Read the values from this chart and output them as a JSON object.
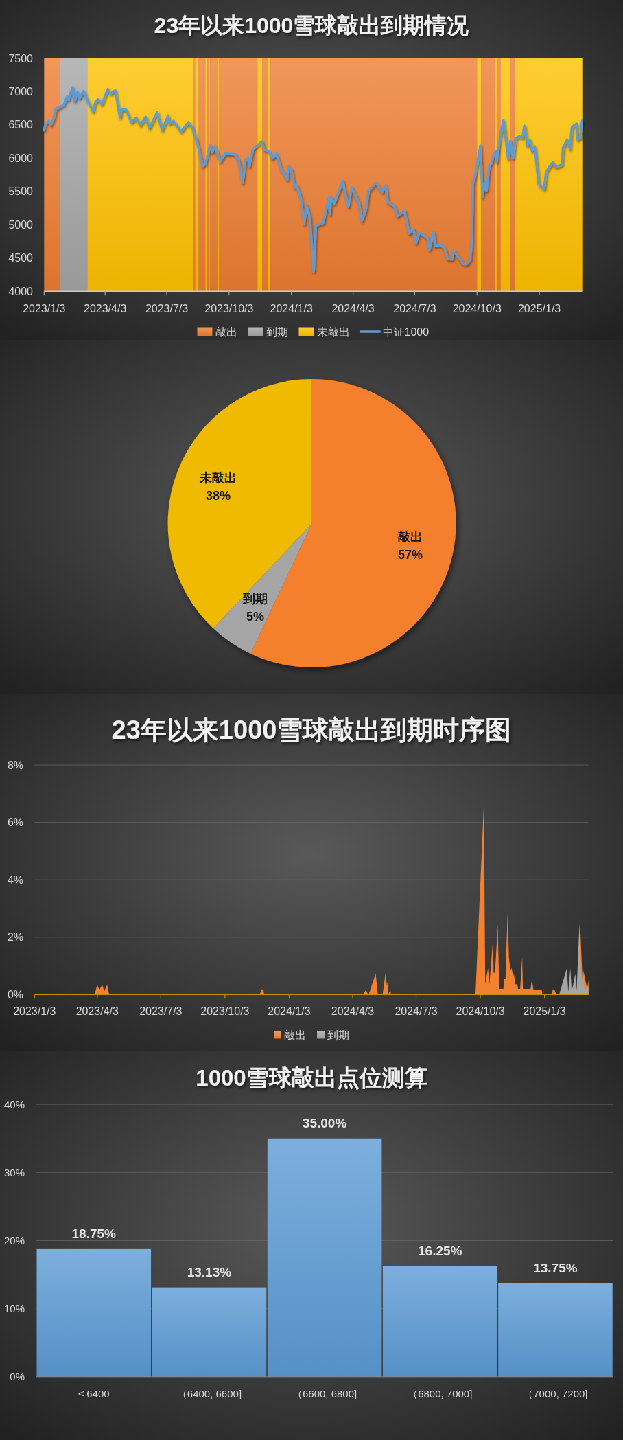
{
  "chart_data": [
    {
      "type": "line",
      "title": "23年以来1000雪球敲出到期情况",
      "xlim": [
        "2023-01-03",
        "2025-03-07"
      ],
      "xticks": [
        {
          "value": "2023-01-03",
          "label": "2023/1/3"
        },
        {
          "value": "2023-04-03",
          "label": "2023/4/3"
        },
        {
          "value": "2023-07-03",
          "label": "2023/7/3"
        },
        {
          "value": "2023-10-03",
          "label": "2023/10/3"
        },
        {
          "value": "2024-01-03",
          "label": "2024/1/3"
        },
        {
          "value": "2024-04-03",
          "label": "2024/4/3"
        },
        {
          "value": "2024-07-03",
          "label": "2024/7/3"
        },
        {
          "value": "2024-10-03",
          "label": "2024/10/3"
        },
        {
          "value": "2025-01-03",
          "label": "2025/1/3"
        }
      ],
      "ylim": [
        4000,
        7500
      ],
      "yticks": [
        4000,
        4500,
        5000,
        5500,
        6000,
        6500,
        7000,
        7500
      ],
      "legend": "bottom",
      "bands": [
        {
          "axis": "x",
          "from": "2023-01-03",
          "to": "2023-01-26",
          "label": "敲出",
          "color": "#ed7d31"
        },
        {
          "axis": "x",
          "from": "2023-01-26",
          "to": "2023-03-08",
          "label": "到期",
          "color": "#a5a5a5"
        },
        {
          "axis": "x",
          "from": "2023-03-08",
          "to": "2023-08-11",
          "label": "未敲出",
          "color": "#ffc000"
        },
        {
          "axis": "x",
          "from": "2023-08-11",
          "to": "2023-08-14",
          "color": "#ed7d31"
        },
        {
          "axis": "x",
          "from": "2023-08-14",
          "to": "2023-08-19",
          "color": "#ffc000"
        },
        {
          "axis": "x",
          "from": "2023-08-19",
          "to": "2023-08-29",
          "color": "#ed7d31"
        },
        {
          "axis": "x",
          "from": "2023-08-29",
          "to": "2023-08-31",
          "color": "#ffc000"
        },
        {
          "axis": "x",
          "from": "2023-08-31",
          "to": "2023-09-04",
          "color": "#ed7d31"
        },
        {
          "axis": "x",
          "from": "2023-09-04",
          "to": "2023-09-05",
          "color": "#ffc000"
        },
        {
          "axis": "x",
          "from": "2023-09-05",
          "to": "2023-09-17",
          "color": "#ed7d31"
        },
        {
          "axis": "x",
          "from": "2023-09-17",
          "to": "2023-09-18",
          "color": "#ffc000"
        },
        {
          "axis": "x",
          "from": "2023-09-18",
          "to": "2023-11-14",
          "color": "#ed7d31"
        },
        {
          "axis": "x",
          "from": "2023-11-14",
          "to": "2023-11-21",
          "color": "#ffc000"
        },
        {
          "axis": "x",
          "from": "2023-11-21",
          "to": "2023-11-29",
          "color": "#ed7d31"
        },
        {
          "axis": "x",
          "from": "2023-11-29",
          "to": "2023-12-03",
          "color": "#ffc000"
        },
        {
          "axis": "x",
          "from": "2023-12-03",
          "to": "2024-10-03",
          "color": "#ed7d31"
        },
        {
          "axis": "x",
          "from": "2024-10-03",
          "to": "2024-10-09",
          "color": "#ffc000"
        },
        {
          "axis": "x",
          "from": "2024-10-09",
          "to": "2024-10-30",
          "color": "#ed7d31"
        },
        {
          "axis": "x",
          "from": "2024-10-30",
          "to": "2024-11-01",
          "color": "#ffc000"
        },
        {
          "axis": "x",
          "from": "2024-11-01",
          "to": "2024-11-07",
          "color": "#ed7d31"
        },
        {
          "axis": "x",
          "from": "2024-11-07",
          "to": "2024-11-21",
          "color": "#ffc000"
        },
        {
          "axis": "x",
          "from": "2024-11-21",
          "to": "2024-11-28",
          "color": "#ed7d31"
        },
        {
          "axis": "x",
          "from": "2024-11-28",
          "to": "2025-03-07",
          "color": "#ffc000"
        }
      ],
      "series": [
        {
          "name": "中证1000",
          "color": "#5b9bd5",
          "x": [
            "2023-01-03",
            "2023-01-05",
            "2023-01-10",
            "2023-01-13",
            "2023-01-18",
            "2023-01-20",
            "2023-02-01",
            "2023-02-06",
            "2023-02-08",
            "2023-02-14",
            "2023-02-17",
            "2023-02-21",
            "2023-02-24",
            "2023-03-02",
            "2023-03-09",
            "2023-03-16",
            "2023-03-20",
            "2023-03-24",
            "2023-03-29",
            "2023-04-07",
            "2023-04-11",
            "2023-04-18",
            "2023-04-25",
            "2023-04-27",
            "2023-05-04",
            "2023-05-12",
            "2023-05-19",
            "2023-05-25",
            "2023-06-02",
            "2023-06-07",
            "2023-06-19",
            "2023-06-26",
            "2023-07-05",
            "2023-07-07",
            "2023-07-13",
            "2023-07-24",
            "2023-08-04",
            "2023-08-09",
            "2023-08-16",
            "2023-08-25",
            "2023-08-29",
            "2023-09-05",
            "2023-09-08",
            "2023-09-12",
            "2023-09-20",
            "2023-09-27",
            "2023-10-12",
            "2023-10-17",
            "2023-10-23",
            "2023-10-27",
            "2023-10-31",
            "2023-11-02",
            "2023-11-07",
            "2023-11-20",
            "2023-11-24",
            "2023-11-30",
            "2023-12-06",
            "2023-12-12",
            "2023-12-19",
            "2023-12-28",
            "2023-12-29",
            "2024-01-03",
            "2024-01-08",
            "2024-01-11",
            "2024-01-17",
            "2024-01-22",
            "2024-01-25",
            "2024-01-30",
            "2024-02-05",
            "2024-02-08",
            "2024-02-19",
            "2024-02-27",
            "2024-02-29",
            "2024-03-01",
            "2024-03-06",
            "2024-03-19",
            "2024-03-22",
            "2024-03-27",
            "2024-04-01",
            "2024-04-12",
            "2024-04-16",
            "2024-04-22",
            "2024-04-26",
            "2024-05-07",
            "2024-05-16",
            "2024-05-21",
            "2024-05-24",
            "2024-06-03",
            "2024-06-07",
            "2024-06-18",
            "2024-06-25",
            "2024-07-01",
            "2024-07-05",
            "2024-07-10",
            "2024-07-22",
            "2024-07-25",
            "2024-07-31",
            "2024-08-02",
            "2024-08-09",
            "2024-08-16",
            "2024-08-21",
            "2024-08-27",
            "2024-08-30",
            "2024-09-04",
            "2024-09-13",
            "2024-09-18",
            "2024-09-23",
            "2024-09-25",
            "2024-09-27",
            "2024-09-30",
            "2024-10-08",
            "2024-10-11",
            "2024-10-14",
            "2024-10-17",
            "2024-10-21",
            "2024-10-24",
            "2024-10-28",
            "2024-10-31",
            "2024-11-01",
            "2024-11-07",
            "2024-11-11",
            "2024-11-18",
            "2024-11-21",
            "2024-11-25",
            "2024-11-29",
            "2024-12-04",
            "2024-12-09",
            "2024-12-12",
            "2024-12-16",
            "2024-12-20",
            "2024-12-23",
            "2024-12-27",
            "2025-01-02",
            "2025-01-10",
            "2025-01-13",
            "2025-01-20",
            "2025-01-23",
            "2025-01-27",
            "2025-02-05",
            "2025-02-07",
            "2025-02-13",
            "2025-02-17",
            "2025-02-20",
            "2025-02-27",
            "2025-02-28",
            "2025-03-04",
            "2025-03-07"
          ],
          "values": [
            6420,
            6520,
            6560,
            6500,
            6620,
            6740,
            6800,
            6930,
            6880,
            7070,
            6860,
            7000,
            6900,
            7010,
            6850,
            6700,
            6850,
            6890,
            6810,
            7040,
            6970,
            7020,
            6610,
            6730,
            6730,
            6540,
            6610,
            6500,
            6620,
            6450,
            6690,
            6420,
            6640,
            6520,
            6560,
            6400,
            6540,
            6470,
            6280,
            5880,
            5920,
            6190,
            6090,
            6180,
            5950,
            6070,
            6060,
            5970,
            5630,
            5970,
            6000,
            5880,
            6130,
            6250,
            6130,
            6110,
            6000,
            6070,
            5830,
            5680,
            5880,
            5830,
            5560,
            5590,
            5390,
            5010,
            5300,
            5130,
            4300,
            4990,
            5030,
            5400,
            5160,
            5420,
            5320,
            5660,
            5490,
            5270,
            5560,
            5320,
            5060,
            5230,
            5520,
            5630,
            5490,
            5590,
            5350,
            5280,
            5130,
            5210,
            4870,
            4940,
            4730,
            4890,
            4800,
            4630,
            4890,
            4680,
            4700,
            4650,
            4490,
            4480,
            4610,
            4530,
            4410,
            4410,
            4480,
            4700,
            5630,
            5730,
            6190,
            5420,
            5610,
            5510,
            5880,
            5920,
            6070,
            6110,
            5940,
            6380,
            6570,
            5990,
            6260,
            6000,
            6300,
            6330,
            6310,
            6490,
            6190,
            6280,
            6110,
            6180,
            5610,
            5540,
            5800,
            5900,
            5940,
            5870,
            5900,
            6160,
            6280,
            6140,
            6470,
            6520,
            6280,
            6300,
            6560
          ]
        }
      ]
    },
    {
      "type": "pie",
      "categories": [
        "敲出",
        "到期",
        "未敲出"
      ],
      "values": [
        57,
        5,
        38
      ],
      "colors": [
        "#f4802f",
        "#a5a5a5",
        "#f0ba00"
      ],
      "value_labels": [
        "57%",
        "5%",
        "38%"
      ]
    },
    {
      "type": "area",
      "title": "23年以来1000雪球敲出到期时序图",
      "xlim": [
        "2023-01-03",
        "2025-03-07"
      ],
      "xticks": [
        {
          "value": "2023-01-03",
          "label": "2023/1/3"
        },
        {
          "value": "2023-04-03",
          "label": "2023/4/3"
        },
        {
          "value": "2023-07-03",
          "label": "2023/7/3"
        },
        {
          "value": "2023-10-03",
          "label": "2023/10/3"
        },
        {
          "value": "2024-01-03",
          "label": "2024/1/3"
        },
        {
          "value": "2024-04-03",
          "label": "2024/4/3"
        },
        {
          "value": "2024-07-03",
          "label": "2024/7/3"
        },
        {
          "value": "2024-10-03",
          "label": "2024/10/3"
        },
        {
          "value": "2025-01-03",
          "label": "2025/1/3"
        }
      ],
      "ylim": [
        0,
        8
      ],
      "yticks": [
        {
          "value": 0,
          "label": "0%"
        },
        {
          "value": 2,
          "label": "2%"
        },
        {
          "value": 4,
          "label": "4%"
        },
        {
          "value": 6,
          "label": "6%"
        },
        {
          "value": 8,
          "label": "8%"
        }
      ],
      "grid": "y",
      "legend": "bottom",
      "series": [
        {
          "name": "敲出",
          "color": "#f4812f",
          "x": [
            "2023-01-03",
            "2023-03-30",
            "2023-04-03",
            "2023-04-06",
            "2023-04-10",
            "2023-04-13",
            "2023-04-17",
            "2023-04-20",
            "2023-11-22",
            "2023-11-24",
            "2023-11-27",
            "2023-11-28",
            "2024-04-18",
            "2024-04-22",
            "2024-04-25",
            "2024-04-26",
            "2024-05-06",
            "2024-05-09",
            "2024-05-16",
            "2024-05-20",
            "2024-05-22",
            "2024-05-23",
            "2024-05-24",
            "2024-05-27",
            "2024-05-28",
            "2024-09-26",
            "2024-10-08",
            "2024-10-10",
            "2024-10-14",
            "2024-10-16",
            "2024-10-21",
            "2024-10-22",
            "2024-10-24",
            "2024-10-28",
            "2024-10-30",
            "2024-11-05",
            "2024-11-06",
            "2024-11-08",
            "2024-11-11",
            "2024-11-13",
            "2024-11-15",
            "2024-11-17",
            "2024-11-19",
            "2024-11-20",
            "2024-11-22",
            "2024-11-25",
            "2024-11-26",
            "2024-11-29",
            "2024-12-02",
            "2024-12-03",
            "2024-12-14",
            "2024-12-16",
            "2024-12-17",
            "2024-12-18",
            "2024-12-30",
            "2024-12-31",
            "2025-01-13",
            "2025-01-15",
            "2025-01-17",
            "2025-01-20",
            "2025-02-06",
            "2025-02-08",
            "2025-02-10",
            "2025-02-20",
            "2025-02-23",
            "2025-02-27",
            "2025-02-28",
            "2025-03-03",
            "2025-03-05",
            "2025-03-07"
          ],
          "values": [
            0,
            0,
            0.34,
            0.16,
            0.34,
            0.12,
            0.34,
            0,
            0,
            0.18,
            0.18,
            0,
            0,
            0.16,
            0,
            0,
            0.74,
            0,
            0,
            0.74,
            0.32,
            0.44,
            0,
            0.15,
            0,
            0,
            6.64,
            0.36,
            0.92,
            0.36,
            1.88,
            0.76,
            0.76,
            2.44,
            0.2,
            0.2,
            0.56,
            0.56,
            2.84,
            1.28,
            0.84,
            0.92,
            0.6,
            0.76,
            0.36,
            0.36,
            0.2,
            0.2,
            1.32,
            0.2,
            0.2,
            0.54,
            0.36,
            0.16,
            0.16,
            0,
            0,
            0.18,
            0.18,
            0,
            0,
            0.28,
            0,
            0,
            2.44,
            0.2,
            0.8,
            0.45,
            0.2,
            0.52
          ]
        },
        {
          "name": "到期",
          "color": "#a5a5a5",
          "x": [
            "2025-01-24",
            "2025-02-04",
            "2025-02-06",
            "2025-02-09",
            "2025-02-11",
            "2025-02-16",
            "2025-02-18",
            "2025-02-22",
            "2025-02-25",
            "2025-02-27",
            "2025-03-01",
            "2025-03-07"
          ],
          "values": [
            0,
            0.92,
            0.1,
            0.92,
            0.1,
            0.72,
            0.15,
            2.48,
            0.25,
            1.1,
            0.2,
            0.3
          ]
        }
      ]
    },
    {
      "type": "bar",
      "title": "1000雪球敲出点位测算",
      "categories": [
        "≤ 6400",
        "（6400, 6600]",
        "（6600, 6800]",
        "（6800, 7000]",
        "（7000, 7200]"
      ],
      "values": [
        18.75,
        13.13,
        35.0,
        16.25,
        13.75
      ],
      "value_labels": [
        "18.75%",
        "13.13%",
        "35.00%",
        "16.25%",
        "13.75%"
      ],
      "color": "#5b9bd5",
      "ylim": [
        0,
        40
      ],
      "yticks": [
        {
          "value": 0,
          "label": "0%"
        },
        {
          "value": 10,
          "label": "10%"
        },
        {
          "value": 20,
          "label": "20%"
        },
        {
          "value": 30,
          "label": "30%"
        },
        {
          "value": 40,
          "label": "40%"
        }
      ],
      "grid": "y"
    }
  ]
}
